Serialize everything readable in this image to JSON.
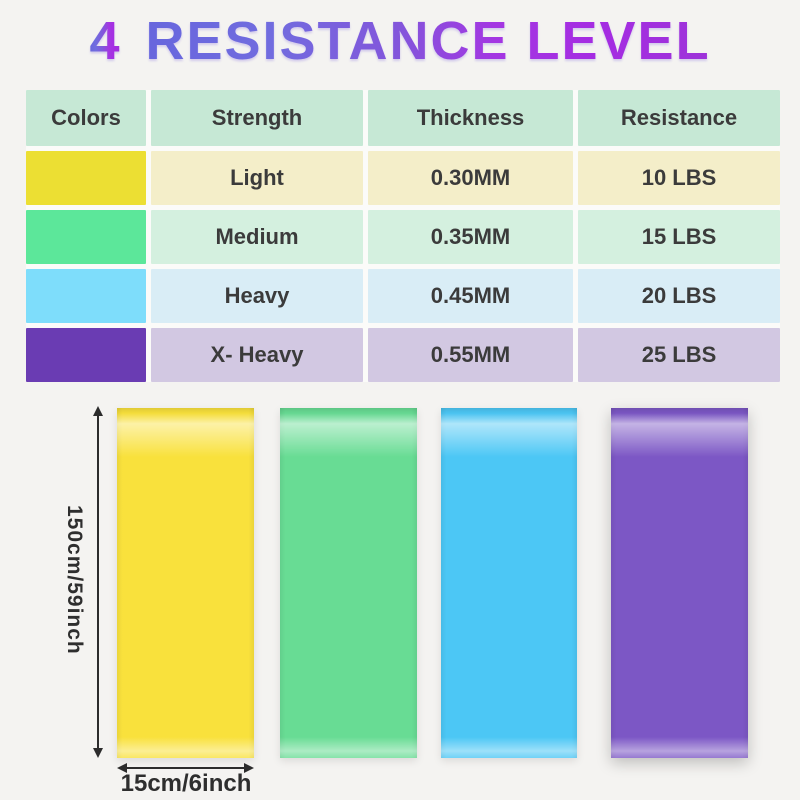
{
  "page": {
    "background": "#f4f3f1"
  },
  "title": {
    "number": "4",
    "text": "RESISTANCE LEVEL",
    "gradient_start": "#6766dd",
    "gradient_end": "#9d33d9"
  },
  "table": {
    "header_bg": "#c6e8d5",
    "headers": [
      "Colors",
      "Strength",
      "Thickness",
      "Resistance"
    ],
    "rows": [
      {
        "color_name": "yellow",
        "swatch": "#ecdf33",
        "row_bg": "#f4eec9",
        "strength": "Light",
        "thickness": "0.30MM",
        "resistance": "10 LBS"
      },
      {
        "color_name": "green",
        "swatch": "#5ce79a",
        "row_bg": "#d4f0df",
        "strength": "Medium",
        "thickness": "0.35MM",
        "resistance": "15 LBS"
      },
      {
        "color_name": "blue",
        "swatch": "#7eddfb",
        "row_bg": "#d9edf6",
        "strength": "Heavy",
        "thickness": "0.45MM",
        "resistance": "20 LBS"
      },
      {
        "color_name": "purple",
        "swatch": "#6a3cb3",
        "row_bg": "#d2c8e2",
        "strength": "X- Heavy",
        "thickness": "0.55MM",
        "resistance": "25 LBS"
      }
    ]
  },
  "bands": [
    {
      "color_name": "yellow",
      "color": "#f9e13c"
    },
    {
      "color_name": "green",
      "color": "#68dc94"
    },
    {
      "color_name": "blue",
      "color": "#4cc7f5"
    },
    {
      "color_name": "purple",
      "color": "#7c57c5"
    }
  ],
  "dimensions": {
    "length_label": "150cm/59inch",
    "width_label": "15cm/6inch",
    "arrow_color": "#2c2c2c"
  }
}
